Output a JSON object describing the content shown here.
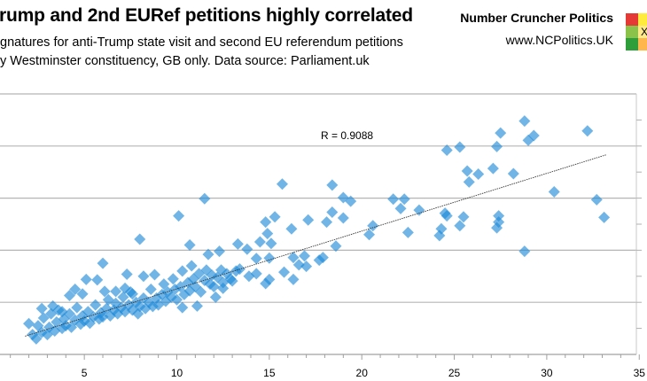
{
  "header": {
    "title": "rump and 2nd EURef petitions highly correlated",
    "subtitle_line1": "gnatures for anti-Trump state visit and second EU referendum petitions",
    "subtitle_line2": "y Westminster constituency, GB only. Data source: Parliament.uk",
    "brand": "Number Cruncher Politics",
    "url": "www.NCPolitics.UK",
    "logo_mark": "X",
    "logo_colors": [
      "#e53935",
      "#ffeb3b",
      "#8bc34a",
      "#ffe98a",
      "#2e9e3a",
      "#ffb74d"
    ]
  },
  "chart_data": {
    "type": "scatter",
    "title": "rump and 2nd EURef petitions highly correlated",
    "xlabel": "",
    "ylabel": "",
    "xlim": [
      0,
      35
    ],
    "ylim": [
      0,
      5
    ],
    "x_ticks": [
      "5",
      "10",
      "15",
      "20",
      "25",
      "30",
      "35"
    ],
    "grid": true,
    "point_color": "#1a88d8",
    "marker": "diamond",
    "annotation": "R = 0.9088",
    "trendline": {
      "x": [
        1.8,
        33.2
      ],
      "y": [
        0.35,
        3.83
      ]
    },
    "points": [
      [
        28.8,
        4.48
      ],
      [
        32.2,
        4.29
      ],
      [
        27.5,
        4.25
      ],
      [
        29.3,
        4.2
      ],
      [
        29.0,
        4.11
      ],
      [
        24.6,
        3.92
      ],
      [
        25.3,
        3.98
      ],
      [
        27.3,
        3.99
      ],
      [
        27.1,
        3.57
      ],
      [
        28.2,
        3.47
      ],
      [
        25.7,
        3.52
      ],
      [
        26.3,
        3.46
      ],
      [
        25.8,
        3.31
      ],
      [
        30.4,
        3.12
      ],
      [
        32.7,
        2.97
      ],
      [
        33.1,
        2.63
      ],
      [
        28.8,
        1.98
      ],
      [
        24.5,
        2.71
      ],
      [
        24.6,
        2.66
      ],
      [
        25.5,
        2.64
      ],
      [
        25.3,
        2.47
      ],
      [
        24.3,
        2.41
      ],
      [
        24.2,
        2.28
      ],
      [
        27.4,
        2.66
      ],
      [
        27.4,
        2.54
      ],
      [
        27.3,
        2.43
      ],
      [
        21.7,
        2.98
      ],
      [
        22.3,
        2.98
      ],
      [
        22.1,
        2.8
      ],
      [
        23.1,
        2.77
      ],
      [
        22.5,
        2.34
      ],
      [
        20.6,
        2.47
      ],
      [
        20.4,
        2.3
      ],
      [
        15.7,
        3.27
      ],
      [
        18.4,
        3.25
      ],
      [
        19.0,
        3.01
      ],
      [
        19.4,
        2.94
      ],
      [
        18.4,
        2.73
      ],
      [
        19.0,
        2.62
      ],
      [
        18.1,
        2.54
      ],
      [
        18.6,
        2.08
      ],
      [
        17.9,
        1.86
      ],
      [
        17.7,
        1.81
      ],
      [
        11.5,
        2.99
      ],
      [
        10.1,
        2.66
      ],
      [
        8.0,
        2.21
      ],
      [
        6.0,
        1.75
      ],
      [
        15.3,
        2.64
      ],
      [
        14.8,
        2.54
      ],
      [
        14.9,
        2.32
      ],
      [
        16.2,
        2.41
      ],
      [
        17.1,
        2.58
      ],
      [
        10.7,
        2.1
      ],
      [
        13.3,
        2.12
      ],
      [
        13.8,
        2.02
      ],
      [
        14.5,
        2.16
      ],
      [
        15.1,
        2.13
      ],
      [
        12.3,
        1.98
      ],
      [
        11.7,
        1.92
      ],
      [
        14.3,
        1.84
      ],
      [
        15.0,
        1.85
      ],
      [
        16.3,
        1.86
      ],
      [
        16.9,
        1.89
      ],
      [
        16.6,
        1.72
      ],
      [
        17.0,
        1.69
      ],
      [
        15.8,
        1.58
      ],
      [
        16.3,
        1.44
      ],
      [
        14.3,
        1.55
      ],
      [
        14.8,
        1.36
      ],
      [
        15.0,
        1.44
      ],
      [
        13.9,
        1.5
      ],
      [
        13.4,
        1.64
      ],
      [
        13.0,
        1.41
      ],
      [
        12.5,
        1.27
      ],
      [
        12.1,
        1.1
      ],
      [
        11.1,
        0.93
      ],
      [
        10.3,
        0.9
      ],
      [
        7.3,
        1.54
      ],
      [
        8.2,
        1.5
      ],
      [
        8.8,
        1.53
      ],
      [
        5.1,
        1.44
      ],
      [
        5.7,
        1.43
      ],
      [
        4.5,
        1.25
      ],
      [
        4.9,
        1.16
      ],
      [
        4.2,
        1.13
      ],
      [
        6.1,
        1.21
      ],
      [
        6.7,
        1.21
      ],
      [
        7.2,
        1.27
      ],
      [
        7.6,
        1.16
      ],
      [
        2.0,
        0.59
      ],
      [
        2.7,
        0.88
      ],
      [
        3.3,
        0.93
      ],
      [
        3.8,
        0.82
      ],
      [
        2.2,
        0.38
      ],
      [
        2.4,
        0.3
      ],
      [
        2.5,
        0.55
      ],
      [
        2.7,
        0.42
      ],
      [
        2.8,
        0.7
      ],
      [
        3.0,
        0.38
      ],
      [
        3.1,
        0.52
      ],
      [
        3.2,
        0.78
      ],
      [
        3.4,
        0.45
      ],
      [
        3.5,
        0.62
      ],
      [
        3.6,
        0.85
      ],
      [
        3.8,
        0.5
      ],
      [
        3.9,
        0.68
      ],
      [
        4.0,
        0.55
      ],
      [
        4.2,
        0.78
      ],
      [
        4.3,
        0.52
      ],
      [
        4.5,
        0.66
      ],
      [
        4.6,
        0.9
      ],
      [
        4.8,
        0.58
      ],
      [
        4.9,
        0.74
      ],
      [
        5.0,
        0.64
      ],
      [
        5.2,
        0.82
      ],
      [
        5.3,
        0.6
      ],
      [
        5.5,
        0.72
      ],
      [
        5.6,
        0.95
      ],
      [
        5.8,
        0.68
      ],
      [
        5.9,
        0.8
      ],
      [
        6.0,
        0.72
      ],
      [
        6.2,
        0.88
      ],
      [
        6.3,
        1.05
      ],
      [
        6.4,
        0.74
      ],
      [
        6.6,
        0.85
      ],
      [
        6.7,
        0.98
      ],
      [
        6.8,
        0.78
      ],
      [
        7.0,
        0.9
      ],
      [
        7.1,
        1.1
      ],
      [
        7.2,
        0.82
      ],
      [
        7.4,
        0.95
      ],
      [
        7.5,
        1.2
      ],
      [
        7.6,
        0.85
      ],
      [
        7.8,
        1.0
      ],
      [
        7.9,
        0.78
      ],
      [
        8.0,
        0.92
      ],
      [
        8.2,
        1.08
      ],
      [
        8.3,
        0.88
      ],
      [
        8.5,
        1.0
      ],
      [
        8.6,
        1.25
      ],
      [
        8.7,
        0.92
      ],
      [
        8.9,
        1.08
      ],
      [
        9.0,
        0.95
      ],
      [
        9.2,
        1.15
      ],
      [
        9.3,
        1.35
      ],
      [
        9.4,
        1.02
      ],
      [
        9.5,
        1.2
      ],
      [
        9.7,
        1.1
      ],
      [
        9.8,
        1.45
      ],
      [
        9.9,
        1.25
      ],
      [
        10.0,
        1.05
      ],
      [
        10.2,
        1.3
      ],
      [
        10.3,
        1.6
      ],
      [
        10.4,
        1.15
      ],
      [
        10.6,
        1.38
      ],
      [
        10.7,
        1.22
      ],
      [
        10.8,
        1.7
      ],
      [
        10.9,
        1.45
      ],
      [
        11.0,
        1.3
      ],
      [
        11.2,
        1.55
      ],
      [
        11.3,
        1.2
      ],
      [
        11.5,
        1.42
      ],
      [
        11.6,
        1.62
      ],
      [
        11.8,
        1.35
      ],
      [
        11.9,
        1.52
      ],
      [
        12.0,
        1.3
      ],
      [
        12.2,
        1.48
      ],
      [
        12.4,
        1.62
      ],
      [
        12.5,
        1.38
      ],
      [
        12.7,
        1.55
      ],
      [
        12.9,
        1.45
      ],
      [
        13.2,
        1.6
      ]
    ]
  }
}
